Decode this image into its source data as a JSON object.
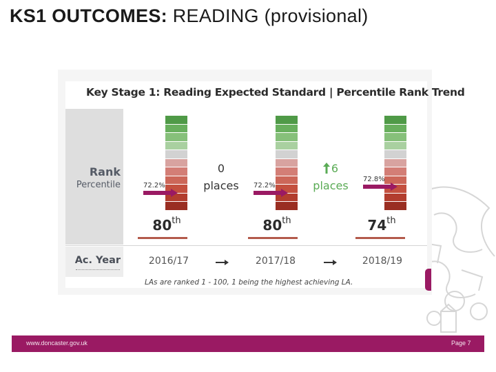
{
  "slide": {
    "title_bold": "KS1 OUTCOMES:",
    "title_rest": " READING (provisional)"
  },
  "infographic": {
    "title": "Key Stage 1: Reading Expected Standard | Percentile Rank Trend",
    "rank_label": "Rank",
    "percentile_label": "Percentile",
    "ac_year_label": "Ac. Year",
    "years": [
      {
        "year": "2016/17",
        "pct": "72.2%",
        "rank": "80",
        "rank_suffix": "th"
      },
      {
        "year": "2017/18",
        "pct": "72.2%",
        "rank": "80",
        "rank_suffix": "th"
      },
      {
        "year": "2018/19",
        "pct": "72.8%",
        "rank": "74",
        "rank_suffix": "th"
      }
    ],
    "changes": [
      {
        "value": "0",
        "unit": "places",
        "direction": "none"
      },
      {
        "value": "6",
        "unit": "places",
        "direction": "up"
      }
    ],
    "footnote": "LAs are ranked 1 - 100, 1 being the highest achieving LA.",
    "bar_colors": [
      "#4f9a47",
      "#68af5d",
      "#86c07a",
      "#a9d0a0",
      "#d2d2d2",
      "#d8a3a0",
      "#d37e76",
      "#cc6759",
      "#c4503f",
      "#b23d2e",
      "#9a2e22"
    ],
    "colors": {
      "arrow": "#9a1a63",
      "up_arrow": "#5aab55",
      "underline": "#b35a4b"
    }
  },
  "footer": {
    "url": "www.doncaster.gov.uk",
    "page": "Page 7",
    "color": "#9a1a63"
  }
}
